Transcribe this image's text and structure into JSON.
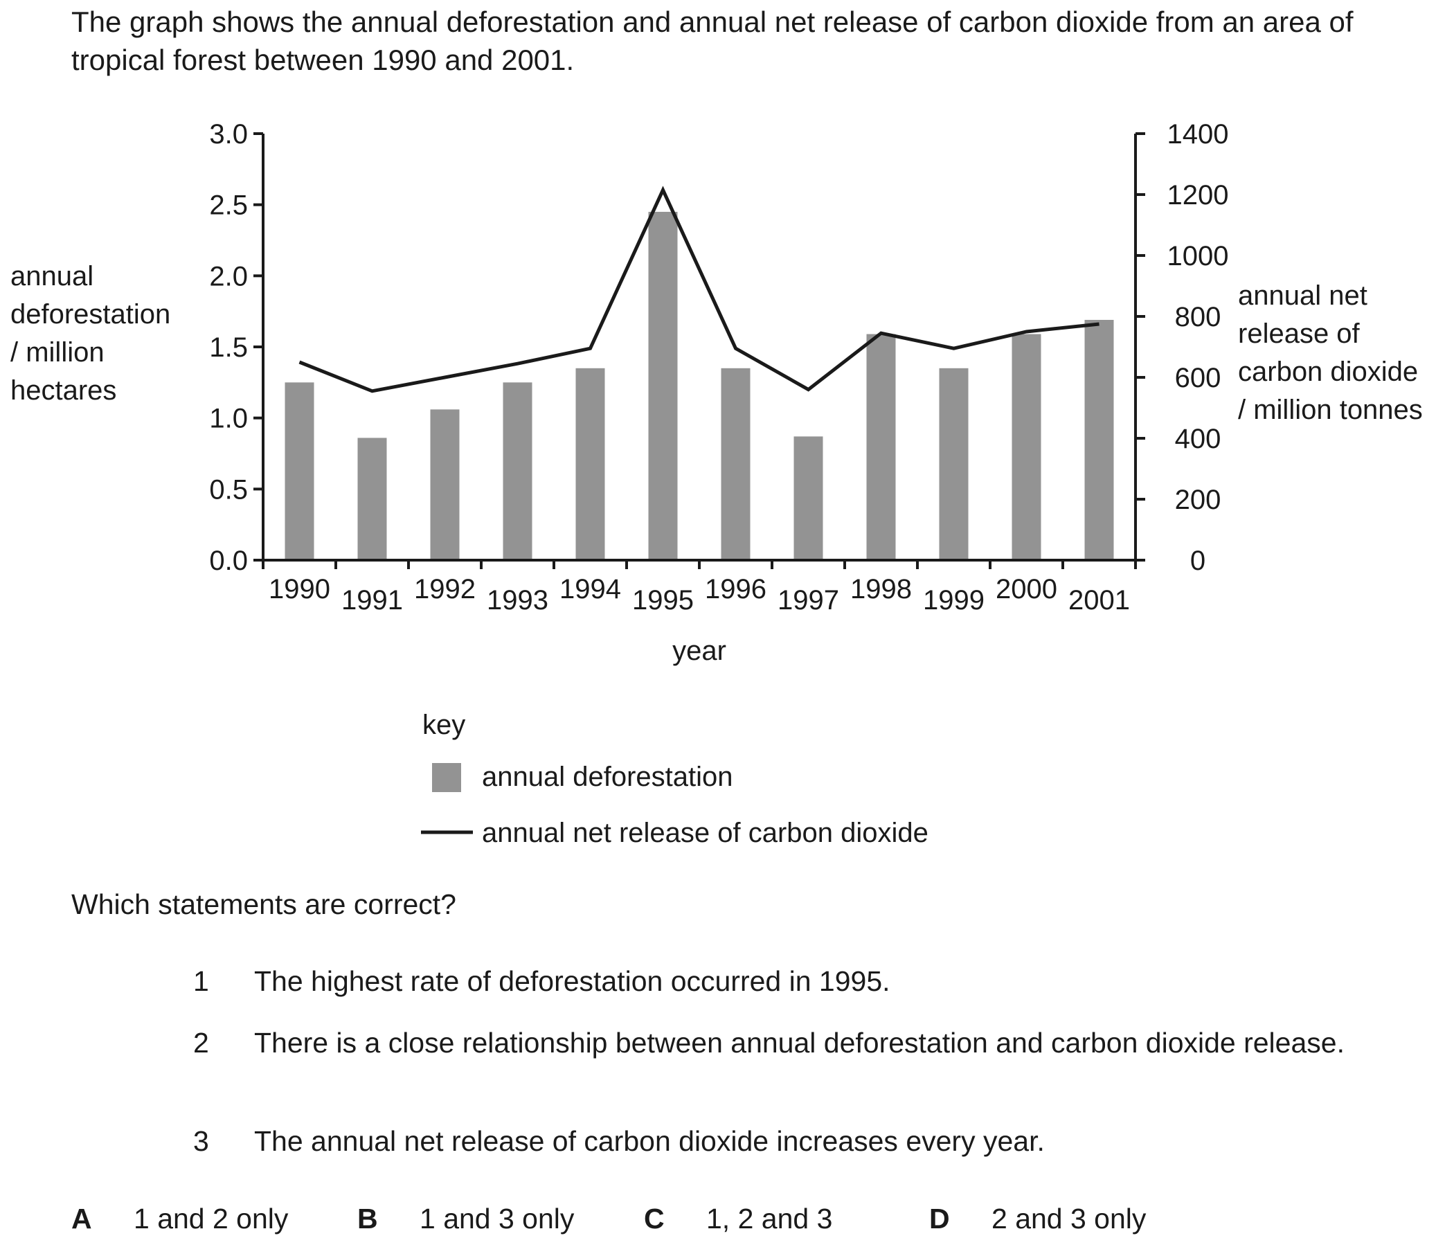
{
  "intro": "The graph shows the annual deforestation and annual net release of carbon dioxide from an area of tropical forest between 1990 and 2001.",
  "chart_data": {
    "type": "bar",
    "categories": [
      "1990",
      "1991",
      "1992",
      "1993",
      "1994",
      "1995",
      "1996",
      "1997",
      "1998",
      "1999",
      "2000",
      "2001"
    ],
    "series": [
      {
        "name": "annual deforestation",
        "type": "bar",
        "axis": "left",
        "values": [
          1.25,
          0.86,
          1.06,
          1.25,
          1.35,
          2.45,
          1.35,
          0.87,
          1.59,
          1.35,
          1.59,
          1.69
        ]
      },
      {
        "name": "annual net release of carbon dioxide",
        "type": "line",
        "axis": "right",
        "values": [
          650,
          555,
          600,
          645,
          695,
          1215,
          695,
          560,
          745,
          695,
          750,
          775
        ]
      }
    ],
    "xlabel": "year",
    "ylabel_left": [
      "annual",
      "deforestation",
      "/ million",
      "hectares"
    ],
    "ylabel_right": [
      "annual net",
      "release of",
      "carbon dioxide",
      "/ million tonnes"
    ],
    "ylim_left": [
      0,
      3.0
    ],
    "ylim_right": [
      0,
      1400
    ],
    "left_ticks": [
      "0.0",
      "0.5",
      "1.0",
      "1.5",
      "2.0",
      "2.5",
      "3.0"
    ],
    "right_ticks": [
      "0",
      "200",
      "400",
      "600",
      "800",
      "1000",
      "1200",
      "1400"
    ],
    "grid": false,
    "legend_placement": "bottom",
    "key_title": "key",
    "colors": {
      "bar": "#939393",
      "line": "#1a1a1a",
      "axis": "#1a1a1a"
    }
  },
  "question": "Which statements are correct?",
  "statements": [
    {
      "num": "1",
      "text": "The highest rate of deforestation occurred in 1995."
    },
    {
      "num": "2",
      "text": "There is a close relationship between annual deforestation and carbon dioxide release."
    },
    {
      "num": "3",
      "text": "The annual net release of carbon dioxide increases every year."
    }
  ],
  "options": [
    {
      "letter": "A",
      "text": "1 and 2 only"
    },
    {
      "letter": "B",
      "text": "1 and 3 only"
    },
    {
      "letter": "C",
      "text": "1, 2 and 3"
    },
    {
      "letter": "D",
      "text": "2 and 3 only"
    }
  ]
}
